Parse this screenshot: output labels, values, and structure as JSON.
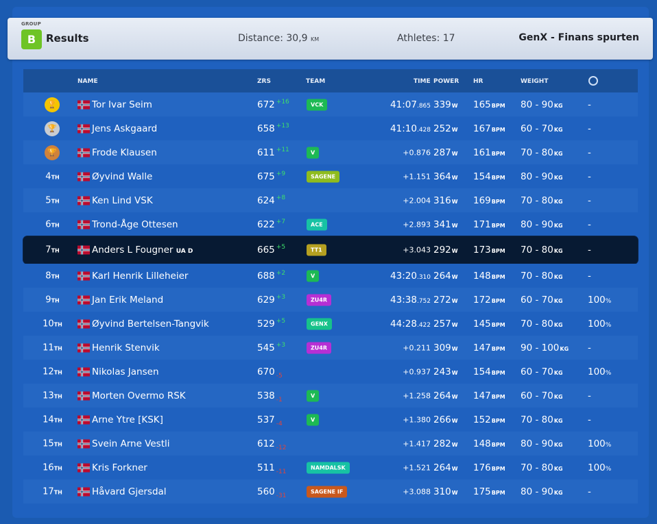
{
  "header": {
    "group_label": "GROUP",
    "group_letter": "B",
    "title": "Results",
    "distance_label": "Distance: 30,9",
    "distance_unit": "KM",
    "athletes": "Athletes: 17",
    "event": "GenX - Finans spurten"
  },
  "columns": {
    "name": "NAME",
    "zrs": "ZRS",
    "team": "TEAM",
    "time": "TIME",
    "power": "POWER",
    "hr": "HR",
    "weight": "WEIGHT"
  },
  "units": {
    "power": "W",
    "hr": "BPM",
    "weight": "KG"
  },
  "rows": [
    {
      "medal": "gold",
      "pos": "",
      "suffix": "",
      "name": "Tor Ivar Seim",
      "tag": "",
      "zrs": "672",
      "delta": "+16",
      "dir": "up",
      "team": "VCK",
      "team_color": "#1db954",
      "time": "41:07",
      "ms": ".865",
      "gap": false,
      "power": "339",
      "hr": "165",
      "weight": "80 - 90",
      "extra": "-",
      "pct": ""
    },
    {
      "medal": "silver",
      "pos": "",
      "suffix": "",
      "name": "Jens Askgaard",
      "tag": "",
      "zrs": "658",
      "delta": "+13",
      "dir": "up",
      "team": "",
      "team_color": "",
      "time": "41:10",
      "ms": ".428",
      "gap": false,
      "power": "252",
      "hr": "167",
      "weight": "60 - 70",
      "extra": "-",
      "pct": ""
    },
    {
      "medal": "bronze",
      "pos": "",
      "suffix": "",
      "name": "Frode Klausen",
      "tag": "",
      "zrs": "611",
      "delta": "+11",
      "dir": "up",
      "team": "V",
      "team_color": "#1db954",
      "time": "+0.876",
      "ms": "",
      "gap": true,
      "power": "287",
      "hr": "161",
      "weight": "70 - 80",
      "extra": "-",
      "pct": ""
    },
    {
      "medal": "",
      "pos": "4",
      "suffix": "TH",
      "name": "Øyvind Walle",
      "tag": "",
      "zrs": "675",
      "delta": "+9",
      "dir": "up",
      "team": "SAGENE",
      "team_color": "#8fbc1e",
      "time": "+1.151",
      "ms": "",
      "gap": true,
      "power": "364",
      "hr": "154",
      "weight": "80 - 90",
      "extra": "-",
      "pct": ""
    },
    {
      "medal": "",
      "pos": "5",
      "suffix": "TH",
      "name": "Ken Lind VSK",
      "tag": "",
      "zrs": "624",
      "delta": "+8",
      "dir": "up",
      "team": "",
      "team_color": "",
      "time": "+2.004",
      "ms": "",
      "gap": true,
      "power": "316",
      "hr": "169",
      "weight": "70 - 80",
      "extra": "-",
      "pct": ""
    },
    {
      "medal": "",
      "pos": "6",
      "suffix": "TH",
      "name": "Trond-Åge Ottesen",
      "tag": "",
      "zrs": "622",
      "delta": "+7",
      "dir": "up",
      "team": "ACE",
      "team_color": "#17c2a4",
      "time": "+2.893",
      "ms": "",
      "gap": true,
      "power": "341",
      "hr": "171",
      "weight": "80 - 90",
      "extra": "-",
      "pct": ""
    },
    {
      "medal": "",
      "pos": "7",
      "suffix": "TH",
      "name": "Anders L Fougner ",
      "tag": "UA D",
      "zrs": "665",
      "delta": "+5",
      "dir": "up",
      "team": "TT1",
      "team_color": "#b5a021",
      "time": "+3.043",
      "ms": "",
      "gap": true,
      "power": "292",
      "hr": "173",
      "weight": "70 - 80",
      "extra": "-",
      "pct": "",
      "highlight": true
    },
    {
      "medal": "",
      "pos": "8",
      "suffix": "TH",
      "name": "Karl Henrik Lilleheier",
      "tag": "",
      "zrs": "688",
      "delta": "+2",
      "dir": "up",
      "team": "V",
      "team_color": "#1db954",
      "time": "43:20",
      "ms": ".310",
      "gap": false,
      "power": "264",
      "hr": "148",
      "weight": "70 - 80",
      "extra": "-",
      "pct": ""
    },
    {
      "medal": "",
      "pos": "9",
      "suffix": "TH",
      "name": "Jan Erik Meland",
      "tag": "",
      "zrs": "629",
      "delta": "+3",
      "dir": "up",
      "team": "ZU4R",
      "team_color": "#b62fd4",
      "time": "43:38",
      "ms": ".752",
      "gap": false,
      "power": "272",
      "hr": "172",
      "weight": "60 - 70",
      "extra": "100",
      "pct": "%"
    },
    {
      "medal": "",
      "pos": "10",
      "suffix": "TH",
      "name": "Øyvind Bertelsen-Tangvik",
      "tag": "",
      "zrs": "529",
      "delta": "+5",
      "dir": "up",
      "team": "GENX",
      "team_color": "#17c28a",
      "time": "44:28",
      "ms": ".422",
      "gap": false,
      "power": "257",
      "hr": "145",
      "weight": "70 - 80",
      "extra": "100",
      "pct": "%"
    },
    {
      "medal": "",
      "pos": "11",
      "suffix": "TH",
      "name": "Henrik Stenvik",
      "tag": "",
      "zrs": "545",
      "delta": "+3",
      "dir": "up",
      "team": "ZU4R",
      "team_color": "#b62fd4",
      "time": "+0.211",
      "ms": "",
      "gap": true,
      "power": "309",
      "hr": "147",
      "weight": "90 - 100",
      "extra": "-",
      "pct": ""
    },
    {
      "medal": "",
      "pos": "12",
      "suffix": "TH",
      "name": "Nikolas Jansen",
      "tag": "",
      "zrs": "670",
      "delta": "-5",
      "dir": "down",
      "team": "",
      "team_color": "",
      "time": "+0.937",
      "ms": "",
      "gap": true,
      "power": "243",
      "hr": "154",
      "weight": "60 - 70",
      "extra": "100",
      "pct": "%"
    },
    {
      "medal": "",
      "pos": "13",
      "suffix": "TH",
      "name": "Morten Overmo RSK",
      "tag": "",
      "zrs": "538",
      "delta": "-1",
      "dir": "down",
      "team": "V",
      "team_color": "#1db954",
      "time": "+1.258",
      "ms": "",
      "gap": true,
      "power": "264",
      "hr": "147",
      "weight": "60 - 70",
      "extra": "-",
      "pct": ""
    },
    {
      "medal": "",
      "pos": "14",
      "suffix": "TH",
      "name": "Arne Ytre [KSK]",
      "tag": "",
      "zrs": "537",
      "delta": "-4",
      "dir": "down",
      "team": "V",
      "team_color": "#1db954",
      "time": "+1.380",
      "ms": "",
      "gap": true,
      "power": "266",
      "hr": "152",
      "weight": "70 - 80",
      "extra": "-",
      "pct": ""
    },
    {
      "medal": "",
      "pos": "15",
      "suffix": "TH",
      "name": "Svein Arne Vestli",
      "tag": "",
      "zrs": "612",
      "delta": "-12",
      "dir": "down",
      "team": "",
      "team_color": "",
      "time": "+1.417",
      "ms": "",
      "gap": true,
      "power": "282",
      "hr": "148",
      "weight": "80 - 90",
      "extra": "100",
      "pct": "%"
    },
    {
      "medal": "",
      "pos": "16",
      "suffix": "TH",
      "name": "Kris Forkner",
      "tag": "",
      "zrs": "511",
      "delta": "-11",
      "dir": "down",
      "team": "NAMDALSK",
      "team_color": "#17c2a4",
      "time": "+1.521",
      "ms": "",
      "gap": true,
      "power": "264",
      "hr": "176",
      "weight": "70 - 80",
      "extra": "100",
      "pct": "%"
    },
    {
      "medal": "",
      "pos": "17",
      "suffix": "TH",
      "name": "Håvard Gjersdal",
      "tag": "",
      "zrs": "560",
      "delta": "-31",
      "dir": "down",
      "team": "SAGENE IF",
      "team_color": "#c9581c",
      "time": "+3.088",
      "ms": "",
      "gap": true,
      "power": "310",
      "hr": "175",
      "weight": "80 - 90",
      "extra": "-",
      "pct": ""
    }
  ]
}
